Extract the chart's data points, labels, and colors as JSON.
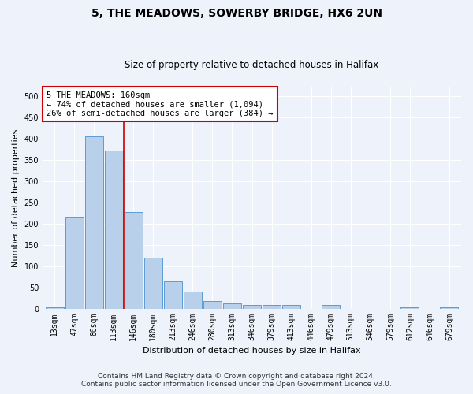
{
  "title": "5, THE MEADOWS, SOWERBY BRIDGE, HX6 2UN",
  "subtitle": "Size of property relative to detached houses in Halifax",
  "xlabel": "Distribution of detached houses by size in Halifax",
  "ylabel": "Number of detached properties",
  "categories": [
    "13sqm",
    "47sqm",
    "80sqm",
    "113sqm",
    "146sqm",
    "180sqm",
    "213sqm",
    "246sqm",
    "280sqm",
    "313sqm",
    "346sqm",
    "379sqm",
    "413sqm",
    "446sqm",
    "479sqm",
    "513sqm",
    "546sqm",
    "579sqm",
    "612sqm",
    "646sqm",
    "679sqm"
  ],
  "values": [
    3,
    215,
    405,
    373,
    228,
    120,
    65,
    40,
    17,
    13,
    8,
    8,
    8,
    0,
    8,
    0,
    0,
    0,
    3,
    0,
    3
  ],
  "bar_color": "#b8d0ea",
  "bar_edge_color": "#5b9bd5",
  "vline_pos": 3.5,
  "vline_color": "#cc0000",
  "annotation_line1": "5 THE MEADOWS: 160sqm",
  "annotation_line2": "← 74% of detached houses are smaller (1,094)",
  "annotation_line3": "26% of semi-detached houses are larger (384) →",
  "annotation_box_color": "#ffffff",
  "annotation_box_edge": "#cc0000",
  "footer_line1": "Contains HM Land Registry data © Crown copyright and database right 2024.",
  "footer_line2": "Contains public sector information licensed under the Open Government Licence v3.0.",
  "ylim": [
    0,
    520
  ],
  "yticks": [
    0,
    50,
    100,
    150,
    200,
    250,
    300,
    350,
    400,
    450,
    500
  ],
  "background_color": "#eef2fb",
  "grid_color": "#ffffff",
  "title_fontsize": 10,
  "subtitle_fontsize": 8.5,
  "axis_label_fontsize": 8,
  "tick_fontsize": 7,
  "annotation_fontsize": 7.5,
  "footer_fontsize": 6.5
}
